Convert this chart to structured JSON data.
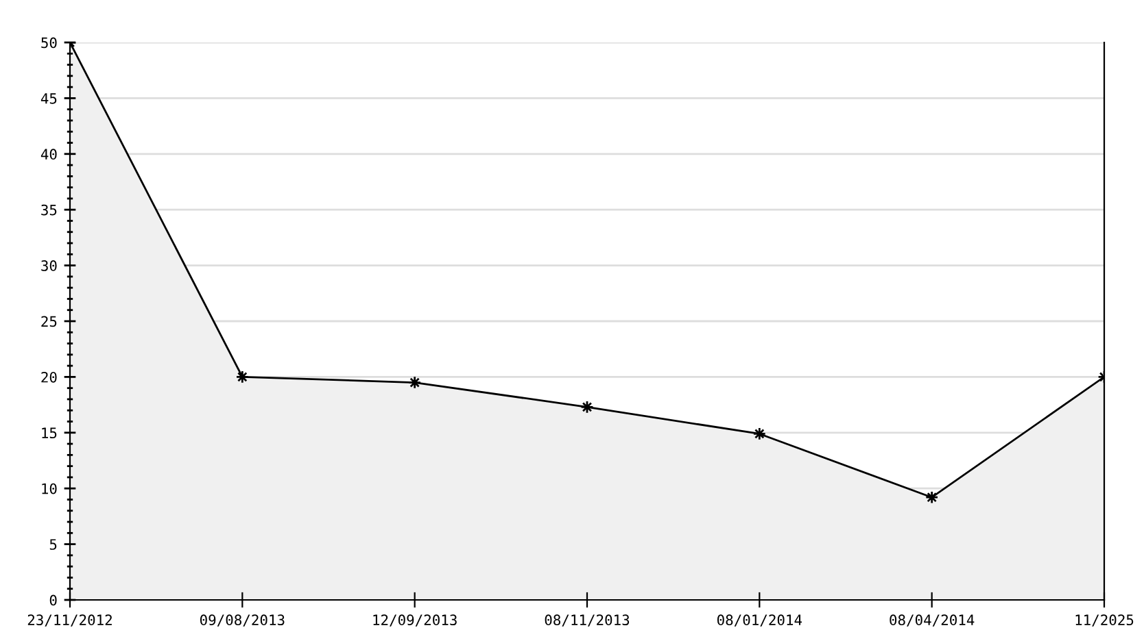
{
  "chart_data": {
    "type": "area",
    "categories": [
      "23/11/2012",
      "09/08/2013",
      "12/09/2013",
      "08/11/2013",
      "08/01/2014",
      "08/04/2014",
      "11/2025"
    ],
    "series": [
      {
        "color": "#f0f0f0",
        "values": [
          50,
          20,
          19.5,
          17.3,
          14.9,
          9.2,
          20
        ]
      }
    ],
    "ylim": [
      0,
      50
    ],
    "yticks": [
      0,
      {
        "value": 1,
        "label": null
      },
      {
        "value": 2,
        "label": null
      },
      {
        "value": 3,
        "label": null
      },
      {
        "value": 4,
        "label": null
      },
      5,
      {
        "value": 6,
        "label": null
      },
      {
        "value": 7,
        "label": null
      },
      {
        "value": 8,
        "label": null
      },
      {
        "value": 9,
        "label": null
      },
      10,
      {
        "value": 11,
        "label": null
      },
      {
        "value": 12,
        "label": null
      },
      {
        "value": 13,
        "label": null
      },
      {
        "value": 14,
        "label": null
      },
      15,
      {
        "value": 16,
        "label": null
      },
      {
        "value": 17,
        "label": null
      },
      {
        "value": 18,
        "label": null
      },
      {
        "value": 19,
        "label": null
      },
      20,
      {
        "value": 21,
        "label": null
      },
      {
        "value": 22,
        "label": null
      },
      {
        "value": 23,
        "label": null
      },
      {
        "value": 24,
        "label": null
      },
      25,
      {
        "value": 26,
        "label": null
      },
      {
        "value": 27,
        "label": null
      },
      {
        "value": 28,
        "label": null
      },
      {
        "value": 29,
        "label": null
      },
      30,
      {
        "value": 31,
        "label": null
      },
      {
        "value": 32,
        "label": null
      },
      {
        "value": 33,
        "label": null
      },
      {
        "value": 34,
        "label": null
      },
      35,
      {
        "value": 36,
        "label": null
      },
      {
        "value": 37,
        "label": null
      },
      {
        "value": 38,
        "label": null
      },
      {
        "value": 39,
        "label": null
      },
      40,
      {
        "value": 41,
        "label": null
      },
      {
        "value": 42,
        "label": null
      },
      {
        "value": 43,
        "label": null
      },
      {
        "value": 44,
        "label": null
      },
      45,
      {
        "value": 46,
        "label": null
      },
      {
        "value": 47,
        "label": null
      },
      {
        "value": 48,
        "label": null
      },
      {
        "value": 49,
        "label": null
      },
      50
    ],
    "grid": "y",
    "marker": "star",
    "line_style": "solid",
    "legend": false
  }
}
